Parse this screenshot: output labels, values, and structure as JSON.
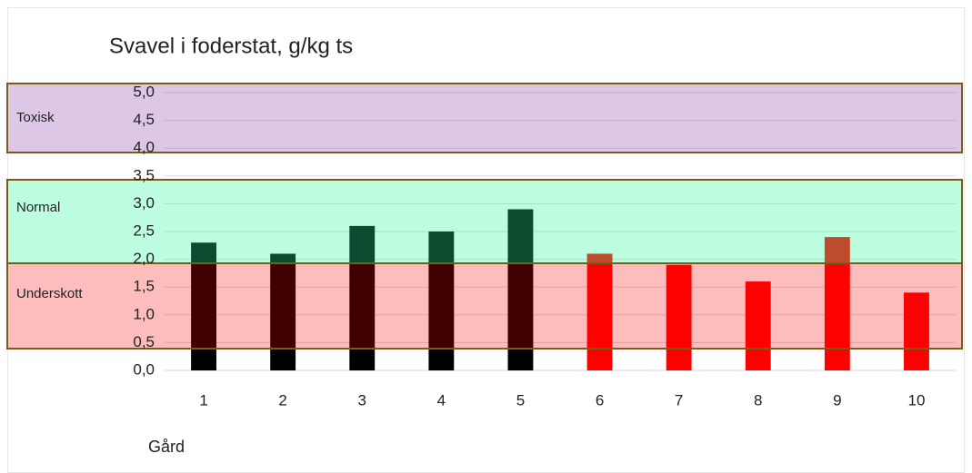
{
  "chart_data": {
    "type": "bar",
    "title": "Svavel i foderstat, g/kg ts",
    "x_label": "Gård",
    "categories": [
      "1",
      "2",
      "3",
      "4",
      "5",
      "6",
      "7",
      "8",
      "9",
      "10"
    ],
    "values": [
      2.3,
      2.1,
      2.6,
      2.5,
      2.9,
      2.1,
      1.9,
      1.6,
      2.4,
      1.4
    ],
    "colors": [
      "#000000",
      "#000000",
      "#000000",
      "#000000",
      "#000000",
      "#ff0000",
      "#ff0000",
      "#ff0000",
      "#ff0000",
      "#ff0000"
    ],
    "ylim": [
      0,
      5
    ],
    "yticks": [
      {
        "value": 0,
        "label": "0,0"
      },
      {
        "value": 0.5,
        "label": "0,5"
      },
      {
        "value": 1,
        "label": "1,0"
      },
      {
        "value": 1.5,
        "label": "1,5"
      },
      {
        "value": 2,
        "label": "2,0"
      },
      {
        "value": 2.5,
        "label": "2,5"
      },
      {
        "value": 3,
        "label": "3,0"
      },
      {
        "value": 3.5,
        "label": "3,5"
      },
      {
        "value": 4,
        "label": "4,0"
      },
      {
        "value": 4.5,
        "label": "4,5"
      },
      {
        "value": 5,
        "label": "5,0"
      }
    ],
    "grid": true,
    "zones": [
      "Toxisk",
      "Normal",
      "Underskott"
    ]
  }
}
